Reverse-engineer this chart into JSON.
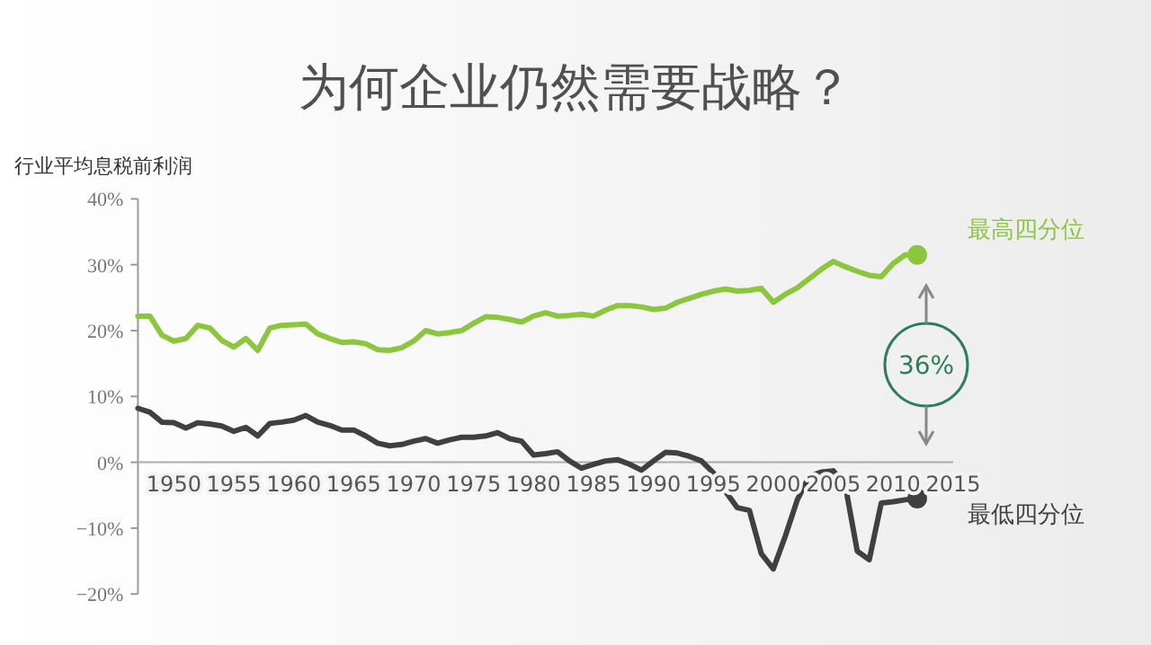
{
  "chart_data": {
    "type": "line",
    "title": "为何企业仍然需要战略？",
    "ylabel": "行业平均息税前利润",
    "x": [
      1947,
      1948,
      1949,
      1950,
      1951,
      1952,
      1953,
      1954,
      1955,
      1956,
      1957,
      1958,
      1959,
      1960,
      1961,
      1962,
      1963,
      1964,
      1965,
      1966,
      1967,
      1968,
      1969,
      1970,
      1971,
      1972,
      1973,
      1974,
      1975,
      1976,
      1977,
      1978,
      1979,
      1980,
      1981,
      1982,
      1983,
      1984,
      1985,
      1986,
      1987,
      1988,
      1989,
      1990,
      1991,
      1992,
      1993,
      1994,
      1995,
      1996,
      1997,
      1998,
      1999,
      2000,
      2001,
      2002,
      2003,
      2004,
      2005,
      2006,
      2007,
      2008,
      2009,
      2010,
      2011,
      2012
    ],
    "series": [
      {
        "name": "最高四分位",
        "color": "#8cc63e",
        "values": [
          22.2,
          22.2,
          19.3,
          18.4,
          18.8,
          20.8,
          20.4,
          18.5,
          17.5,
          18.8,
          17,
          20.4,
          20.8,
          20.9,
          21,
          19.5,
          18.8,
          18.2,
          18.3,
          18,
          17.1,
          17,
          17.4,
          18.4,
          20,
          19.5,
          19.7,
          20,
          21.1,
          22.1,
          22,
          21.7,
          21.3,
          22.2,
          22.7,
          22.2,
          22.3,
          22.5,
          22.2,
          23.1,
          23.8,
          23.8,
          23.6,
          23.2,
          23.4,
          24.3,
          24.9,
          25.5,
          26,
          26.3,
          26,
          26.1,
          26.4,
          24.3,
          25.5,
          26.5,
          27.9,
          29.3,
          30.5,
          29.7,
          29,
          28.4,
          28.2,
          30.2,
          31.5,
          31.5
        ]
      },
      {
        "name": "最低四分位",
        "color": "#404040",
        "values": [
          8.2,
          7.6,
          6.1,
          6,
          5.2,
          6,
          5.8,
          5.5,
          4.7,
          5.3,
          4,
          5.9,
          6.1,
          6.4,
          7.1,
          6.1,
          5.6,
          4.9,
          4.9,
          4,
          2.9,
          2.5,
          2.7,
          3.2,
          3.6,
          2.9,
          3.4,
          3.8,
          3.8,
          4,
          4.5,
          3.6,
          3.2,
          1.1,
          1.3,
          1.6,
          0.2,
          -0.9,
          -0.3,
          0.2,
          0.4,
          -0.3,
          -1.2,
          0.2,
          1.5,
          1.4,
          0.9,
          0.2,
          -1.6,
          -4.4,
          -6.9,
          -7.3,
          -13.9,
          -16.2,
          -11.2,
          -5.7,
          -2.1,
          -1.5,
          -1.3,
          -3.5,
          -13.5,
          -14.8,
          -6.2,
          -6,
          -5.7,
          -5.5
        ]
      }
    ],
    "annotations": [
      "36%"
    ],
    "xlim": [
      1947,
      2015
    ],
    "xticks": [
      1950,
      1955,
      1960,
      1965,
      1970,
      1975,
      1980,
      1985,
      1990,
      1995,
      2000,
      2005,
      2010,
      2015
    ],
    "ylim": [
      -20,
      40
    ],
    "yticks": [
      {
        "value": -20,
        "label": "−20%"
      },
      {
        "value": -10,
        "label": "−10%"
      },
      {
        "value": 0,
        "label": "0%"
      },
      {
        "value": 10,
        "label": "10%"
      },
      {
        "value": 20,
        "label": "20%"
      },
      {
        "value": 30,
        "label": "30%"
      },
      {
        "value": 40,
        "label": "40%"
      }
    ],
    "grid": false,
    "legend": false
  }
}
